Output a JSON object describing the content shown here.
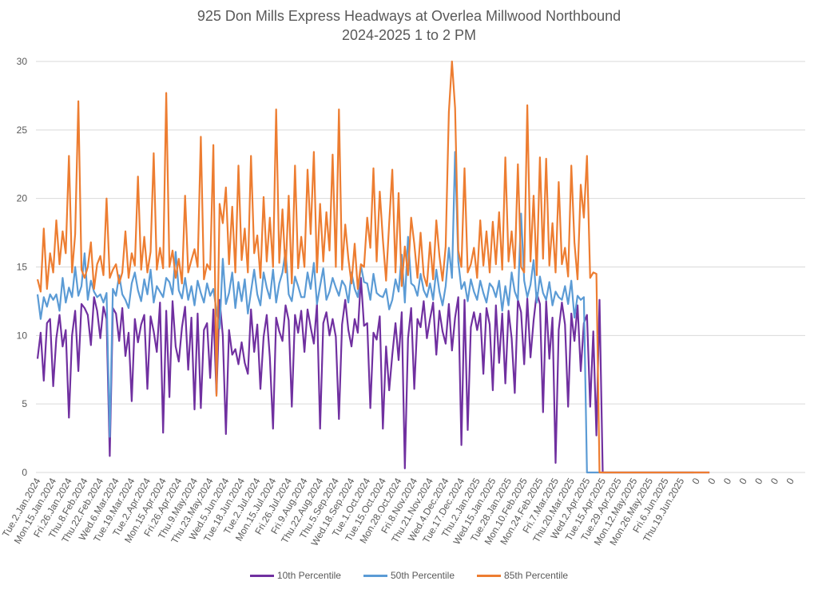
{
  "chart_data": {
    "type": "line",
    "title": "925 Don Mills Express Headways at Overlea Millwood Northbound",
    "subtitle": "2024-2025 1 to 2 PM",
    "xlabel": "",
    "ylabel": "",
    "ylim": [
      0,
      30
    ],
    "yticks": [
      0,
      5,
      10,
      15,
      20,
      25,
      30
    ],
    "grid": true,
    "legend_position": "bottom",
    "points_per_category": 5,
    "categories": [
      "Tue.2.Jan.2024",
      "Mon.15.Jan.2024",
      "Fri.26.Jan.2024",
      "Thu.8.Feb.2024",
      "Thu.22.Feb.2024",
      "Wed.6.Mar.2024",
      "Tue.19.Mar.2024",
      "Tue.2.Apr.2024",
      "Mon.15.Apr.2024",
      "Fri.26.Apr.2024",
      "Thu.9.May.2024",
      "Thu.23.May.2024",
      "Wed.5.Jun.2024",
      "Tue.18.Jun.2024",
      "Tue.2.Jul.2024",
      "Mon.15.Jul.2024",
      "Fri.26.Jul.2024",
      "Fri.9.Aug.2024",
      "Thu.22.Aug.2024",
      "Thu.5.Sep.2024",
      "Wed.18.Sep.2024",
      "Tue.1.Oct.2024",
      "Tue.15.Oct.2024",
      "Mon.28.Oct.2024",
      "Fri.8.Nov.2024",
      "Thu.21.Nov.2024",
      "Wed.4.Dec.2024",
      "Tue.17.Dec.2024",
      "Thu.2.Jan.2025",
      "Wed.15.Jan.2025",
      "Tue.28.Jan.2025",
      "Mon.10.Feb.2025",
      "Mon.24.Feb.2025",
      "Fri.7.Mar.2025",
      "Thu.20.Mar.2025",
      "Wed.2.Apr.2025",
      "Tue.15.Apr.2025",
      "Tue.29.Apr.2025",
      "Mon.12.May.2025",
      "Mon.26.May.2025",
      "Fri.6.Jun.2025",
      "Thu.19.Jun.2025",
      "0",
      "0",
      "0",
      "0",
      "0",
      "0",
      "0"
    ],
    "series": [
      {
        "name": "10th Percentile",
        "color": "#7030A0",
        "values": [
          8.3,
          10.2,
          6.7,
          10.9,
          11.2,
          6.3,
          9.8,
          11.5,
          9.2,
          10.4,
          4.0,
          10.0,
          11.8,
          7.4,
          12.3,
          12.0,
          11.5,
          9.3,
          12.8,
          11.8,
          9.8,
          12.1,
          11.2,
          1.2,
          12.0,
          11.6,
          9.6,
          12.0,
          8.5,
          10.2,
          5.2,
          11.2,
          9.5,
          10.8,
          11.5,
          6.1,
          11.4,
          10.3,
          8.8,
          12.4,
          2.9,
          11.8,
          5.5,
          12.5,
          9.2,
          8.1,
          10.6,
          12.1,
          7.5,
          11.3,
          4.6,
          11.6,
          4.7,
          10.4,
          10.9,
          6.9,
          11.9,
          5.7,
          12.6,
          10.0,
          2.8,
          10.4,
          8.6,
          9.0,
          7.9,
          9.5,
          8.0,
          7.2,
          11.9,
          8.8,
          10.8,
          6.1,
          9.9,
          11.5,
          8.4,
          3.2,
          11.3,
          10.3,
          9.6,
          12.2,
          11.1,
          4.8,
          11.5,
          10.2,
          11.8,
          8.8,
          11.9,
          10.6,
          9.4,
          12.3,
          3.2,
          10.9,
          11.7,
          10.0,
          11.2,
          9.9,
          3.9,
          10.8,
          12.6,
          10.4,
          9.2,
          11.2,
          10.2,
          14.2,
          10.7,
          10.9,
          4.7,
          10.2,
          9.7,
          11.4,
          3.2,
          9.2,
          6.0,
          8.6,
          10.9,
          8.2,
          11.7,
          0.3,
          9.8,
          12.0,
          6.1,
          11.2,
          10.6,
          12.5,
          9.8,
          11.2,
          12.4,
          8.6,
          11.8,
          10.3,
          9.4,
          12.3,
          8.9,
          11.3,
          12.8,
          2.0,
          12.6,
          3.1,
          10.6,
          11.7,
          10.4,
          11.6,
          7.2,
          12.0,
          10.8,
          6.0,
          12.2,
          8.0,
          11.6,
          6.5,
          11.8,
          9.8,
          5.8,
          12.6,
          11.7,
          7.9,
          12.7,
          8.4,
          11.1,
          13.1,
          12.3,
          4.4,
          12.5,
          8.3,
          11.3,
          0.7,
          10.4,
          12.4,
          10.8,
          4.8,
          11.6,
          9.6,
          12.2,
          7.4,
          10.9,
          11.5,
          4.8,
          10.3,
          2.7,
          12.6,
          0,
          0,
          0,
          0,
          0,
          0,
          0,
          0,
          0,
          0,
          0,
          0,
          0,
          0,
          0,
          0,
          0,
          0,
          0,
          0,
          0,
          0,
          0,
          0,
          0,
          0,
          0,
          0,
          0,
          0,
          0,
          0,
          0,
          0,
          0
        ]
      },
      {
        "name": "50th Percentile",
        "color": "#5B9BD5",
        "values": [
          13.0,
          11.2,
          12.8,
          12.1,
          13.0,
          12.6,
          13.0,
          11.8,
          14.2,
          12.4,
          13.5,
          12.8,
          15.0,
          12.9,
          13.6,
          16.0,
          12.6,
          14.0,
          13.2,
          12.8,
          13.0,
          12.4,
          13.1,
          2.6,
          13.4,
          12.9,
          14.4,
          13.0,
          12.6,
          12.0,
          13.8,
          14.6,
          13.3,
          12.5,
          14.1,
          13.0,
          14.8,
          12.4,
          13.6,
          13.2,
          12.8,
          14.2,
          13.9,
          13.0,
          16.1,
          13.3,
          12.7,
          14.2,
          12.6,
          13.6,
          12.2,
          14.0,
          13.1,
          12.4,
          13.8,
          12.9,
          13.4,
          11.8,
          10.5,
          15.6,
          12.3,
          13.1,
          14.6,
          12.0,
          13.9,
          12.5,
          14.1,
          11.6,
          13.2,
          14.8,
          13.0,
          12.2,
          14.6,
          13.5,
          12.7,
          14.8,
          12.4,
          13.8,
          14.6,
          16.2,
          13.0,
          12.5,
          14.3,
          13.6,
          12.8,
          12.8,
          14.6,
          13.4,
          15.3,
          12.3,
          13.6,
          14.9,
          12.6,
          13.2,
          14.2,
          13.5,
          12.9,
          14.0,
          13.6,
          12.4,
          14.6,
          13.4,
          12.8,
          15.1,
          13.9,
          13.8,
          12.6,
          14.5,
          13.1,
          12.9,
          12.8,
          13.4,
          11.9,
          12.6,
          14.1,
          13.2,
          15.9,
          12.4,
          17.2,
          13.8,
          13.6,
          12.9,
          14.5,
          13.3,
          12.8,
          13.8,
          12.6,
          14.8,
          13.2,
          12.2,
          13.6,
          16.4,
          14.2,
          23.4,
          15.4,
          13.4,
          13.9,
          12.5,
          14.1,
          13.2,
          12.6,
          14.0,
          13.1,
          12.4,
          13.8,
          13.5,
          12.8,
          14.0,
          11.8,
          13.6,
          12.2,
          14.6,
          13.2,
          12.6,
          18.9,
          14.0,
          12.8,
          13.7,
          15.5,
          12.4,
          14.3,
          13.1,
          12.6,
          13.9,
          12.2,
          13.2,
          12.8,
          12.6,
          13.6,
          12.3,
          14.0,
          11.3,
          12.9,
          12.6,
          12.8,
          0,
          0,
          0,
          0,
          0,
          0,
          0,
          0,
          0,
          0,
          0,
          0,
          0,
          0,
          0,
          0,
          0,
          0,
          0,
          0,
          0,
          0,
          0,
          0,
          0,
          0,
          0,
          0,
          0,
          0,
          0,
          0,
          0,
          0,
          0
        ]
      },
      {
        "name": "85th Percentile",
        "color": "#ED7D31",
        "values": [
          14.1,
          13.2,
          17.8,
          13.4,
          16.0,
          14.6,
          18.4,
          15.2,
          17.6,
          16.0,
          23.1,
          14.6,
          17.4,
          27.1,
          14.8,
          14.2,
          15.0,
          16.8,
          13.4,
          15.2,
          15.8,
          14.4,
          20.0,
          14.2,
          14.8,
          15.2,
          13.8,
          14.6,
          17.6,
          14.2,
          16.0,
          15.1,
          21.6,
          14.8,
          17.2,
          14.6,
          16.1,
          23.3,
          14.8,
          16.4,
          14.9,
          27.7,
          15.0,
          16.2,
          14.2,
          15.6,
          13.8,
          20.2,
          14.6,
          15.5,
          16.3,
          15.0,
          24.5,
          14.1,
          15.2,
          14.8,
          23.9,
          5.6,
          19.6,
          18.2,
          20.8,
          15.2,
          19.4,
          14.6,
          22.4,
          15.5,
          17.8,
          14.6,
          23.1,
          16.0,
          17.3,
          14.2,
          20.1,
          15.4,
          18.6,
          15.0,
          26.5,
          15.3,
          19.2,
          14.6,
          20.2,
          13.8,
          22.4,
          14.9,
          17.2,
          15.0,
          22.1,
          17.4,
          23.4,
          14.6,
          19.6,
          15.4,
          19.0,
          16.2,
          23.2,
          15.0,
          26.5,
          14.8,
          18.1,
          15.6,
          13.8,
          16.7,
          13.4,
          15.2,
          15.0,
          18.6,
          16.4,
          22.2,
          15.4,
          20.5,
          17.0,
          14.0,
          18.2,
          22.1,
          14.6,
          20.4,
          13.6,
          16.5,
          14.4,
          18.6,
          16.7,
          14.2,
          17.5,
          14.4,
          13.6,
          16.8,
          14.1,
          18.4,
          15.8,
          14.0,
          16.5,
          26.3,
          30.0,
          26.6,
          16.2,
          15.0,
          22.2,
          14.6,
          15.2,
          16.4,
          14.2,
          18.4,
          15.1,
          17.6,
          14.6,
          18.3,
          15.2,
          19.0,
          14.8,
          23.0,
          15.4,
          17.6,
          14.9,
          22.5,
          15.0,
          14.6,
          26.8,
          15.4,
          20.2,
          14.4,
          23.0,
          15.6,
          22.9,
          15.1,
          18.2,
          14.6,
          21.2,
          15.2,
          16.4,
          14.3,
          22.4,
          16.8,
          14.1,
          21.0,
          18.6,
          23.1,
          14.2,
          14.6,
          14.5,
          0,
          0,
          0,
          0,
          0,
          0,
          0,
          0,
          0,
          0,
          0,
          0,
          0,
          0,
          0,
          0,
          0,
          0,
          0,
          0,
          0,
          0,
          0,
          0,
          0,
          0,
          0,
          0,
          0,
          0,
          0,
          0,
          0,
          0,
          0,
          0
        ]
      }
    ]
  }
}
